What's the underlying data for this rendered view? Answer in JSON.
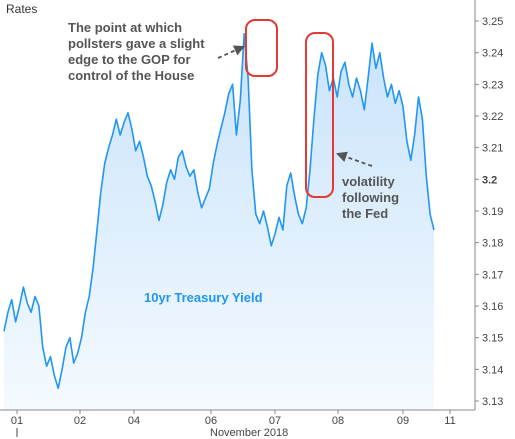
{
  "chart_data": {
    "type": "area",
    "ylabel": "Rates",
    "xlabel": "November 2018",
    "ylim": [
      3.13,
      3.25
    ],
    "yticks": [
      3.13,
      3.14,
      3.15,
      3.16,
      3.17,
      3.18,
      3.19,
      3.2,
      3.21,
      3.22,
      3.23,
      3.24,
      3.25
    ],
    "yticks_labels": [
      "3.13",
      "3.14",
      "3.15",
      "3.16",
      "3.17",
      "3.18",
      "3.19",
      "3.2",
      "3.21",
      "3.22",
      "3.23",
      "3.24",
      "3.25"
    ],
    "highlighted_ytick": "3.2",
    "xticks": [
      "01",
      "02",
      "04",
      "06",
      "07",
      "08",
      "09",
      "11"
    ],
    "grid": false,
    "series": [
      {
        "name": "10yr Treasury Yield",
        "color": "#2196F3",
        "fill_top": "#C9E3FB",
        "fill_bottom": "#F5FAFF",
        "values": [
          3.152,
          3.158,
          3.162,
          3.155,
          3.16,
          3.166,
          3.161,
          3.158,
          3.163,
          3.16,
          3.147,
          3.141,
          3.144,
          3.138,
          3.134,
          3.14,
          3.147,
          3.15,
          3.142,
          3.145,
          3.15,
          3.158,
          3.163,
          3.172,
          3.184,
          3.196,
          3.205,
          3.21,
          3.214,
          3.219,
          3.214,
          3.218,
          3.221,
          3.216,
          3.209,
          3.212,
          3.207,
          3.201,
          3.198,
          3.193,
          3.187,
          3.192,
          3.199,
          3.203,
          3.2,
          3.207,
          3.209,
          3.204,
          3.201,
          3.203,
          3.196,
          3.191,
          3.194,
          3.197,
          3.205,
          3.211,
          3.216,
          3.221,
          3.227,
          3.23,
          3.214,
          3.225,
          3.246,
          3.232,
          3.203,
          3.189,
          3.186,
          3.19,
          3.185,
          3.179,
          3.183,
          3.188,
          3.184,
          3.198,
          3.202,
          3.195,
          3.189,
          3.186,
          3.191,
          3.203,
          3.219,
          3.233,
          3.24,
          3.236,
          3.228,
          3.232,
          3.226,
          3.234,
          3.237,
          3.23,
          3.226,
          3.232,
          3.228,
          3.222,
          3.232,
          3.243,
          3.235,
          3.24,
          3.232,
          3.226,
          3.23,
          3.224,
          3.228,
          3.223,
          3.212,
          3.206,
          3.214,
          3.226,
          3.219,
          3.201,
          3.189,
          3.184
        ]
      }
    ],
    "series_label": "10yr Treasury Yield",
    "annotations": [
      {
        "lines": [
          "The point at which",
          "pollsters gave a slight",
          "edge to the GOP for",
          "control of the House"
        ]
      },
      {
        "lines": [
          "volatility",
          "following",
          "the Fed"
        ]
      }
    ],
    "highlight_color": "#E53935"
  }
}
